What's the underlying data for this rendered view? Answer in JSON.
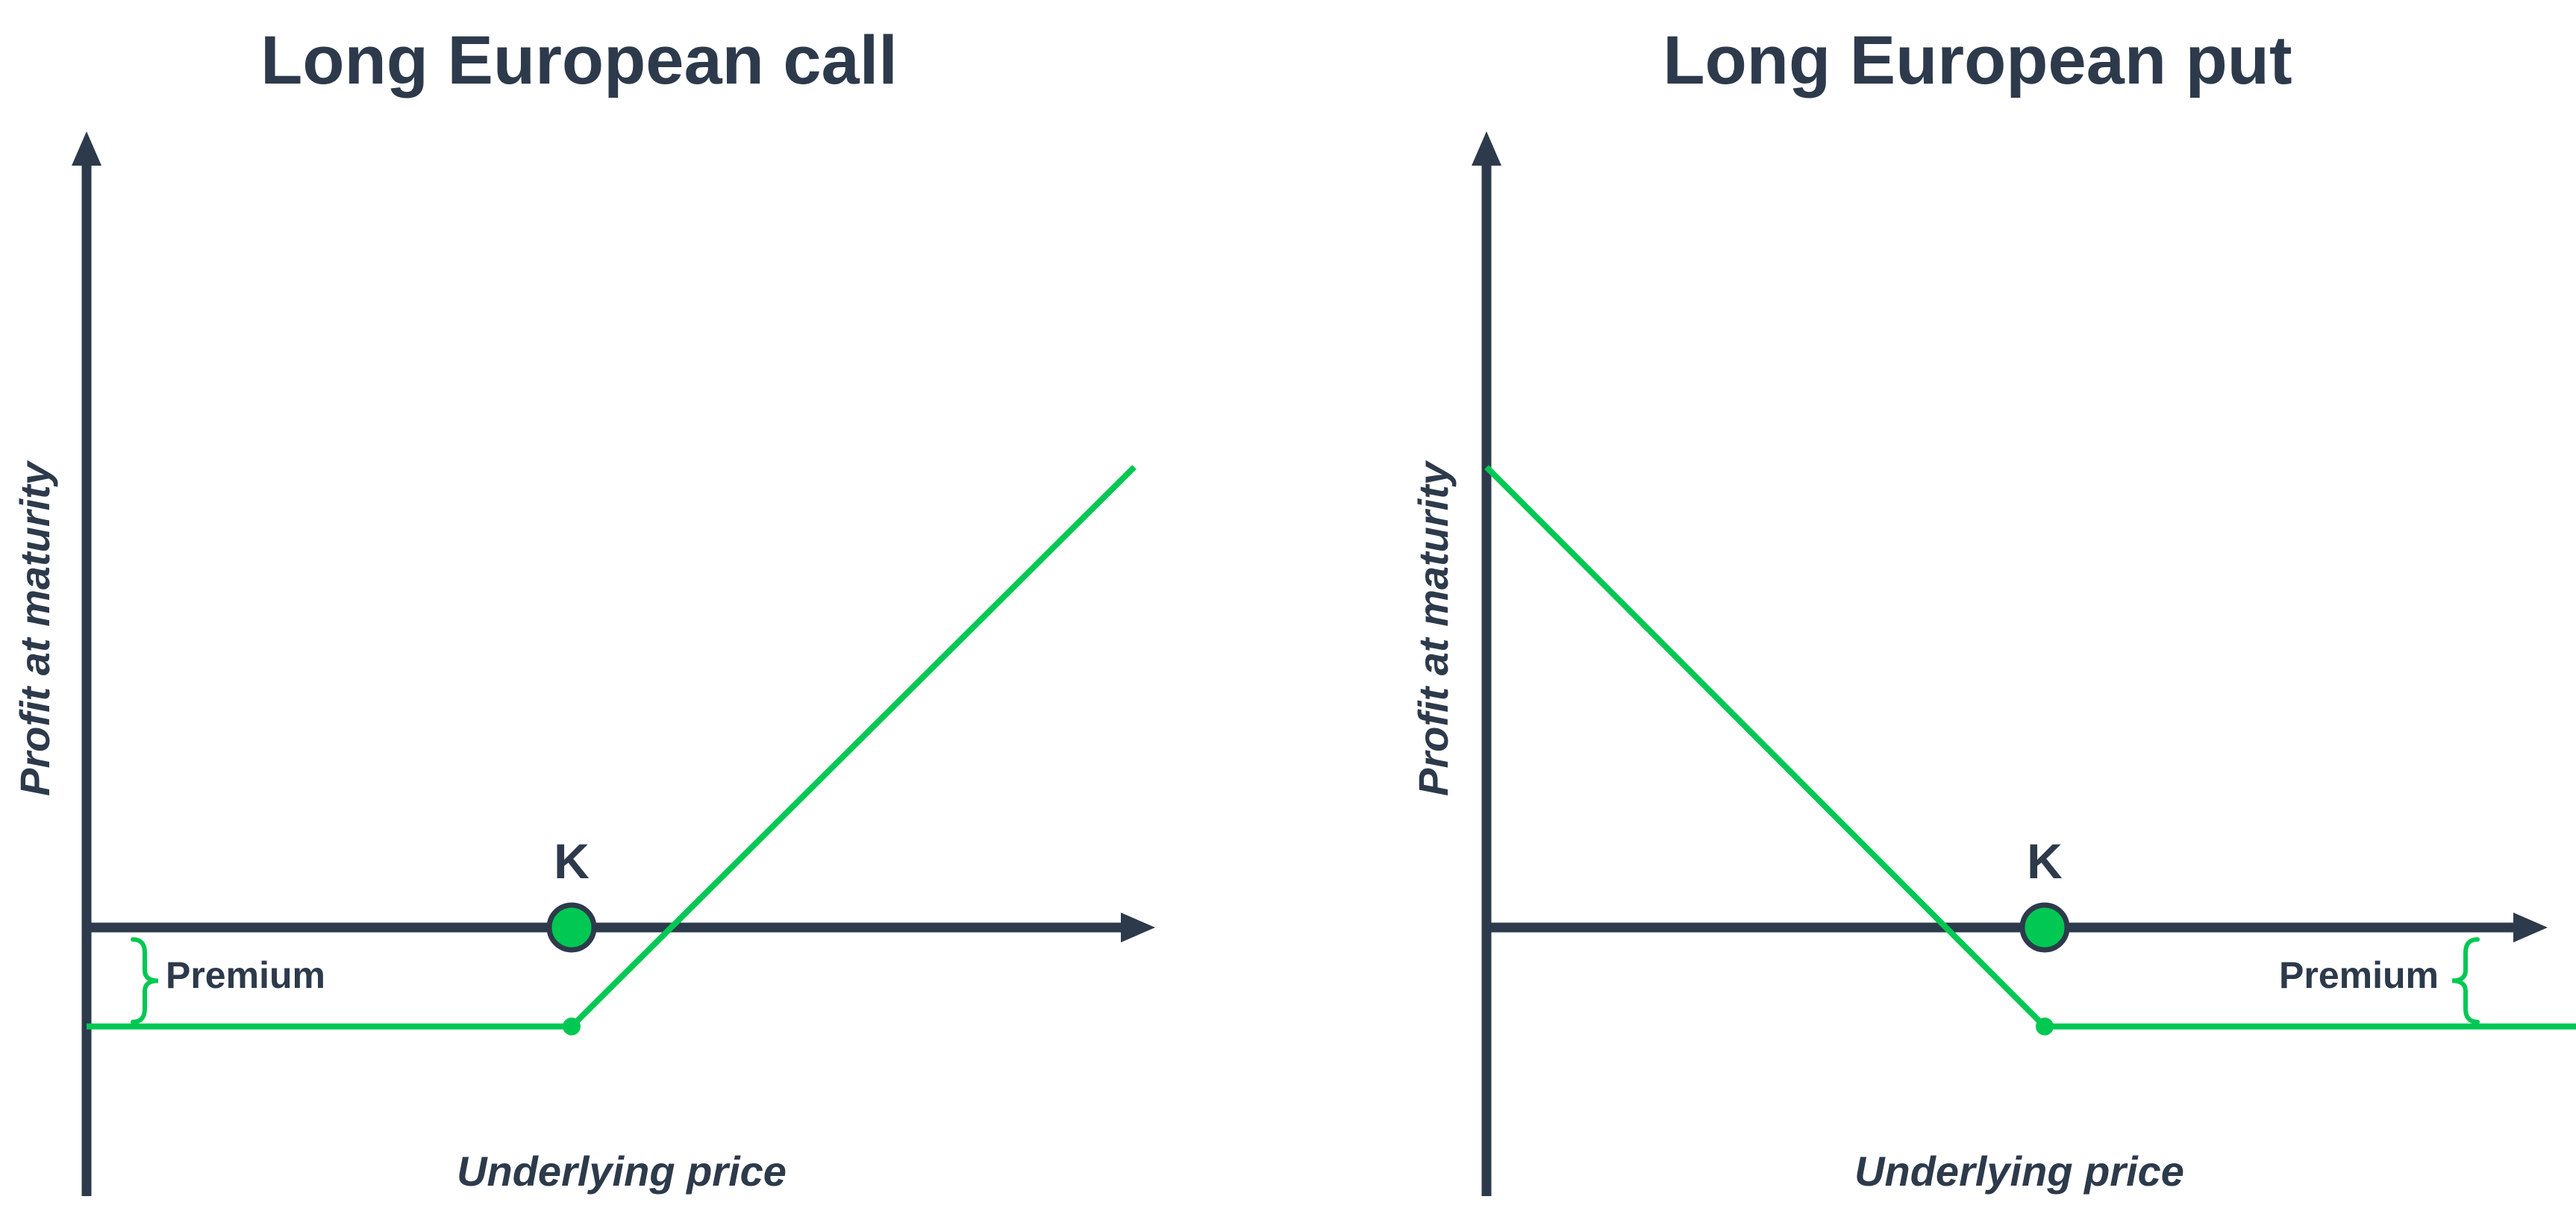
{
  "colors": {
    "axis": "#2d3a4b",
    "payoff": "#00c853",
    "text": "#2d3a4b"
  },
  "chart_data": [
    {
      "type": "line",
      "title": "Long European call",
      "xlabel": "Underlying price",
      "ylabel": "Profit at maturity",
      "strike_label": "K",
      "premium_label": "Premium",
      "strike": 1,
      "premium": 0.215,
      "x": [
        0,
        1,
        2.16
      ],
      "y": [
        -0.215,
        -0.215,
        1
      ],
      "xlim": [
        0,
        2.2
      ],
      "ylim": [
        -0.58,
        1.76
      ]
    },
    {
      "type": "line",
      "title": "Long European put",
      "xlabel": "Underlying price",
      "ylabel": "Profit at maturity",
      "strike_label": "K",
      "premium_label": "Premium",
      "strike": 1,
      "premium": 0.215,
      "x": [
        0,
        1,
        2.0
      ],
      "y": [
        1,
        -0.215,
        -0.215
      ],
      "xlim": [
        0,
        2.07
      ],
      "ylim": [
        -0.58,
        1.76
      ]
    }
  ]
}
